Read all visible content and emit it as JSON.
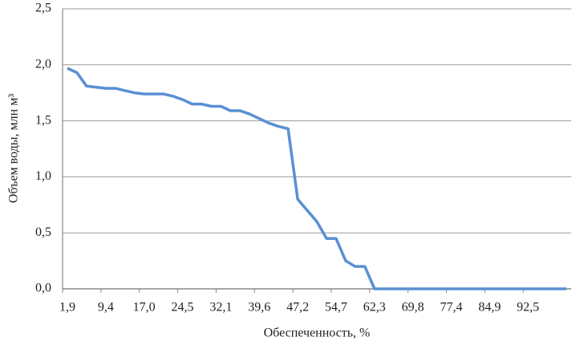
{
  "chart_data": {
    "type": "line",
    "y_label": "Объем воды, млн м³",
    "x_label": "Обеспеченность, %",
    "categories": [
      "1,9",
      null,
      null,
      null,
      "9,4",
      null,
      null,
      null,
      "17,0",
      null,
      null,
      null,
      "24,5",
      null,
      null,
      null,
      "32,1",
      null,
      null,
      null,
      "39,6",
      null,
      null,
      null,
      "47,2",
      null,
      null,
      null,
      "54,7",
      null,
      null,
      null,
      "62,3",
      null,
      null,
      null,
      "69,8",
      null,
      null,
      null,
      "77,4",
      null,
      null,
      null,
      "84,9",
      null,
      null,
      null,
      "92,5",
      null,
      null,
      null,
      null
    ],
    "series": [
      {
        "name": null,
        "color": "#5a8fd4",
        "values": [
          1.97,
          1.93,
          1.81,
          1.8,
          1.79,
          1.79,
          1.77,
          1.75,
          1.74,
          1.74,
          1.74,
          1.72,
          1.69,
          1.65,
          1.65,
          1.63,
          1.63,
          1.59,
          1.59,
          1.56,
          1.52,
          1.48,
          1.45,
          1.43,
          0.8,
          0.7,
          0.6,
          0.45,
          0.45,
          0.25,
          0.2,
          0.2,
          0,
          0,
          0,
          0,
          0,
          0,
          0,
          0,
          0,
          0,
          0,
          0,
          0,
          0,
          0,
          0,
          0,
          0,
          0,
          0,
          0
        ]
      }
    ],
    "ylim": [
      0,
      2.5
    ],
    "yticks": [
      {
        "value": 0,
        "label": "0,0"
      },
      {
        "value": 0.5,
        "label": "0,5"
      },
      {
        "value": 1,
        "label": "1,0"
      },
      {
        "value": 1.5,
        "label": "1,5"
      },
      {
        "value": 2,
        "label": "2,0"
      },
      {
        "value": 2.5,
        "label": "2,5"
      }
    ],
    "grid": true
  }
}
